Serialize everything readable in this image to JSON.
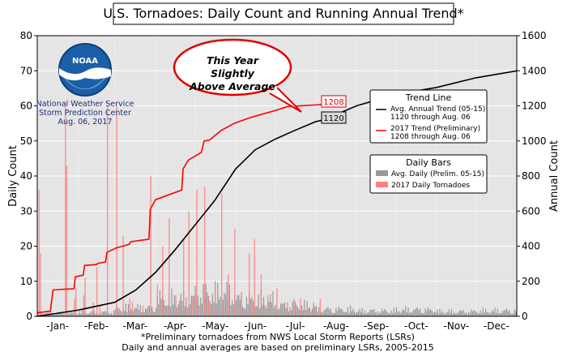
{
  "chart_data": {
    "type": "bar+line",
    "title": "U.S. Tornadoes: Daily Count and Running Annual Trend*",
    "ylabel_left": "Daily Count",
    "ylabel_right": "Annual Count",
    "ylim_left": [
      0,
      80
    ],
    "ylim_right": [
      0,
      1600
    ],
    "yticks_left": [
      "0",
      "10",
      "20",
      "30",
      "40",
      "50",
      "60",
      "70",
      "80"
    ],
    "yticks_right": [
      "0",
      "200",
      "400",
      "600",
      "800",
      "1000",
      "1200",
      "1400",
      "1600"
    ],
    "xticks": [
      "-Jan-",
      "-Feb-",
      "-Mar-",
      "-Apr-",
      "-May-",
      "-Jun-",
      "-Jul-",
      "-Aug-",
      "-Sep-",
      "-Oct-",
      "-Nov-",
      "-Dec-"
    ],
    "grid": true,
    "logo_text": "NOAA",
    "source_lines": [
      "National Weather Service",
      "Storm Prediction Center",
      "Aug. 06, 2017"
    ],
    "callout_lines": [
      "This Year",
      "Slightly",
      "Above Average"
    ],
    "value_labels": {
      "current_2017": "1208",
      "average": "1120"
    },
    "footnotes": [
      "*Preliminary tornadoes from NWS Local Storm Reports (LSRs)",
      "Daily and annual averages are based on preliminary LSRs, 2005-2015"
    ],
    "legend_trend": {
      "title": "Trend Line",
      "entries": [
        {
          "line1": "Avg. Annual Trend (05-15)",
          "line2": "1120 through Aug. 06",
          "color": "#000000"
        },
        {
          "line1": "2017 Trend (Preliminary)",
          "line2": "1208 through Aug. 06",
          "color": "#ff0000"
        }
      ]
    },
    "legend_bars": {
      "title": "Daily Bars",
      "entries": [
        {
          "label": "Avg. Daily (Prelim. 05-15)",
          "color": "#999999"
        },
        {
          "label": "2017 Daily Tornadoes",
          "color": "#ff8080"
        }
      ]
    },
    "series": [
      {
        "name": "Avg. Annual Trend (05-15)",
        "axis": "right",
        "color": "#000000",
        "day": [
          0,
          31,
          59,
          75,
          90,
          105,
          120,
          135,
          151,
          166,
          181,
          196,
          212,
          218,
          243,
          273,
          304,
          334,
          365
        ],
        "value": [
          0,
          35,
          80,
          150,
          250,
          380,
          520,
          660,
          840,
          950,
          1010,
          1060,
          1110,
          1120,
          1200,
          1265,
          1305,
          1360,
          1400
        ]
      },
      {
        "name": "2017 Trend (Preliminary)",
        "axis": "right",
        "color": "#ff0000",
        "day": [
          0,
          10,
          12,
          21,
          22,
          28,
          29,
          35,
          36,
          45,
          46,
          52,
          53,
          60,
          65,
          70,
          71,
          85,
          86,
          90,
          110,
          111,
          115,
          125,
          127,
          131,
          140,
          150,
          161,
          170,
          182,
          190,
          200,
          218
        ],
        "value": [
          20,
          30,
          150,
          155,
          155,
          157,
          225,
          235,
          290,
          295,
          302,
          310,
          365,
          390,
          400,
          410,
          425,
          440,
          610,
          665,
          720,
          840,
          890,
          935,
          1000,
          1005,
          1060,
          1100,
          1130,
          1150,
          1175,
          1195,
          1200,
          1208
        ]
      },
      {
        "name": "2017 Daily Tornadoes",
        "type": "bar",
        "axis": "left",
        "color": "#ff8080",
        "day": [
          1,
          2,
          10,
          21,
          22,
          28,
          29,
          35,
          36,
          42,
          45,
          47,
          53,
          60,
          65,
          70,
          72,
          80,
          86,
          91,
          95,
          100,
          105,
          111,
          115,
          118,
          121,
          127,
          130,
          135,
          140,
          145,
          150,
          155,
          161,
          165,
          170,
          175,
          182,
          190,
          195,
          200,
          205,
          210,
          215
        ],
        "value": [
          36,
          18,
          4,
          61,
          43,
          5,
          8,
          6,
          11,
          4,
          14,
          3,
          60,
          60,
          23,
          5,
          4,
          3,
          40,
          9,
          20,
          28,
          6,
          22,
          30,
          5,
          36,
          37,
          5,
          9,
          35,
          12,
          25,
          7,
          18,
          22,
          12,
          6,
          8,
          4,
          5,
          5,
          3,
          4,
          5
        ]
      },
      {
        "name": "Avg. Daily (Prelim. 05-15)",
        "type": "bar",
        "axis": "left",
        "color": "#999999",
        "month_mean_values": [
          1,
          1.2,
          2.4,
          5.1,
          6.7,
          4.8,
          3.1,
          2.0,
          1.6,
          1.9,
          1.4,
          1.6
        ]
      }
    ]
  }
}
